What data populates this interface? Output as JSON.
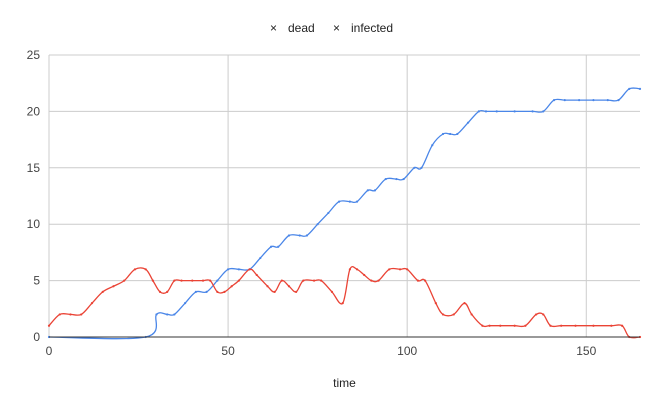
{
  "chart_data": {
    "type": "line",
    "title": "",
    "xlabel": "time",
    "ylabel": "",
    "xlim": [
      0,
      165
    ],
    "ylim": [
      0,
      25
    ],
    "x_ticks": [
      0,
      50,
      100,
      150
    ],
    "y_ticks": [
      0,
      5,
      10,
      15,
      20,
      25
    ],
    "grid": true,
    "legend_position": "top-center",
    "series": [
      {
        "name": "dead",
        "color": "#4a86e8",
        "marker": "×",
        "points": [
          [
            0,
            0
          ],
          [
            27,
            0
          ],
          [
            30,
            2
          ],
          [
            33,
            2
          ],
          [
            35,
            2
          ],
          [
            38,
            3
          ],
          [
            41,
            4
          ],
          [
            44,
            4
          ],
          [
            47,
            5
          ],
          [
            50,
            6
          ],
          [
            53,
            6
          ],
          [
            56,
            6
          ],
          [
            59,
            7
          ],
          [
            62,
            8
          ],
          [
            64,
            8
          ],
          [
            67,
            9
          ],
          [
            70,
            9
          ],
          [
            72,
            9
          ],
          [
            75,
            10
          ],
          [
            78,
            11
          ],
          [
            81,
            12
          ],
          [
            84,
            12
          ],
          [
            86,
            12
          ],
          [
            89,
            13
          ],
          [
            91,
            13
          ],
          [
            94,
            14
          ],
          [
            97,
            14
          ],
          [
            99,
            14
          ],
          [
            102,
            15
          ],
          [
            104,
            15
          ],
          [
            107,
            17
          ],
          [
            110,
            18
          ],
          [
            112,
            18
          ],
          [
            114,
            18
          ],
          [
            117,
            19
          ],
          [
            120,
            20
          ],
          [
            122,
            20
          ],
          [
            125,
            20
          ],
          [
            130,
            20
          ],
          [
            135,
            20
          ],
          [
            138,
            20
          ],
          [
            141,
            21
          ],
          [
            144,
            21
          ],
          [
            148,
            21
          ],
          [
            152,
            21
          ],
          [
            156,
            21
          ],
          [
            159,
            21
          ],
          [
            162,
            22
          ],
          [
            165,
            22
          ]
        ]
      },
      {
        "name": "infected",
        "color": "#ea4335",
        "marker": "×",
        "points": [
          [
            0,
            1
          ],
          [
            3,
            2
          ],
          [
            6,
            2
          ],
          [
            9,
            2
          ],
          [
            12,
            3
          ],
          [
            15,
            4
          ],
          [
            18,
            4.5
          ],
          [
            21,
            5
          ],
          [
            24,
            6
          ],
          [
            27,
            6
          ],
          [
            29,
            5
          ],
          [
            31,
            4
          ],
          [
            33,
            4
          ],
          [
            35,
            5
          ],
          [
            37,
            5
          ],
          [
            40,
            5
          ],
          [
            43,
            5
          ],
          [
            45,
            5
          ],
          [
            47,
            4
          ],
          [
            49,
            4
          ],
          [
            51,
            4.5
          ],
          [
            53,
            5
          ],
          [
            56,
            6
          ],
          [
            58,
            5.5
          ],
          [
            61,
            4.5
          ],
          [
            63,
            4
          ],
          [
            65,
            5
          ],
          [
            67,
            4.5
          ],
          [
            69,
            4
          ],
          [
            71,
            5
          ],
          [
            74,
            5
          ],
          [
            76,
            5
          ],
          [
            79,
            4
          ],
          [
            82,
            3
          ],
          [
            84,
            6
          ],
          [
            86,
            6
          ],
          [
            88,
            5.5
          ],
          [
            90,
            5
          ],
          [
            92,
            5
          ],
          [
            95,
            6
          ],
          [
            98,
            6
          ],
          [
            100,
            6
          ],
          [
            103,
            5
          ],
          [
            105,
            5
          ],
          [
            108,
            3
          ],
          [
            110,
            2
          ],
          [
            113,
            2
          ],
          [
            116,
            3
          ],
          [
            118,
            2
          ],
          [
            121,
            1
          ],
          [
            123,
            1
          ],
          [
            126,
            1
          ],
          [
            130,
            1
          ],
          [
            133,
            1
          ],
          [
            136,
            2
          ],
          [
            138,
            2
          ],
          [
            140,
            1
          ],
          [
            143,
            1
          ],
          [
            147,
            1
          ],
          [
            152,
            1
          ],
          [
            157,
            1
          ],
          [
            160,
            1
          ],
          [
            162,
            0
          ],
          [
            165,
            0
          ]
        ]
      }
    ]
  }
}
